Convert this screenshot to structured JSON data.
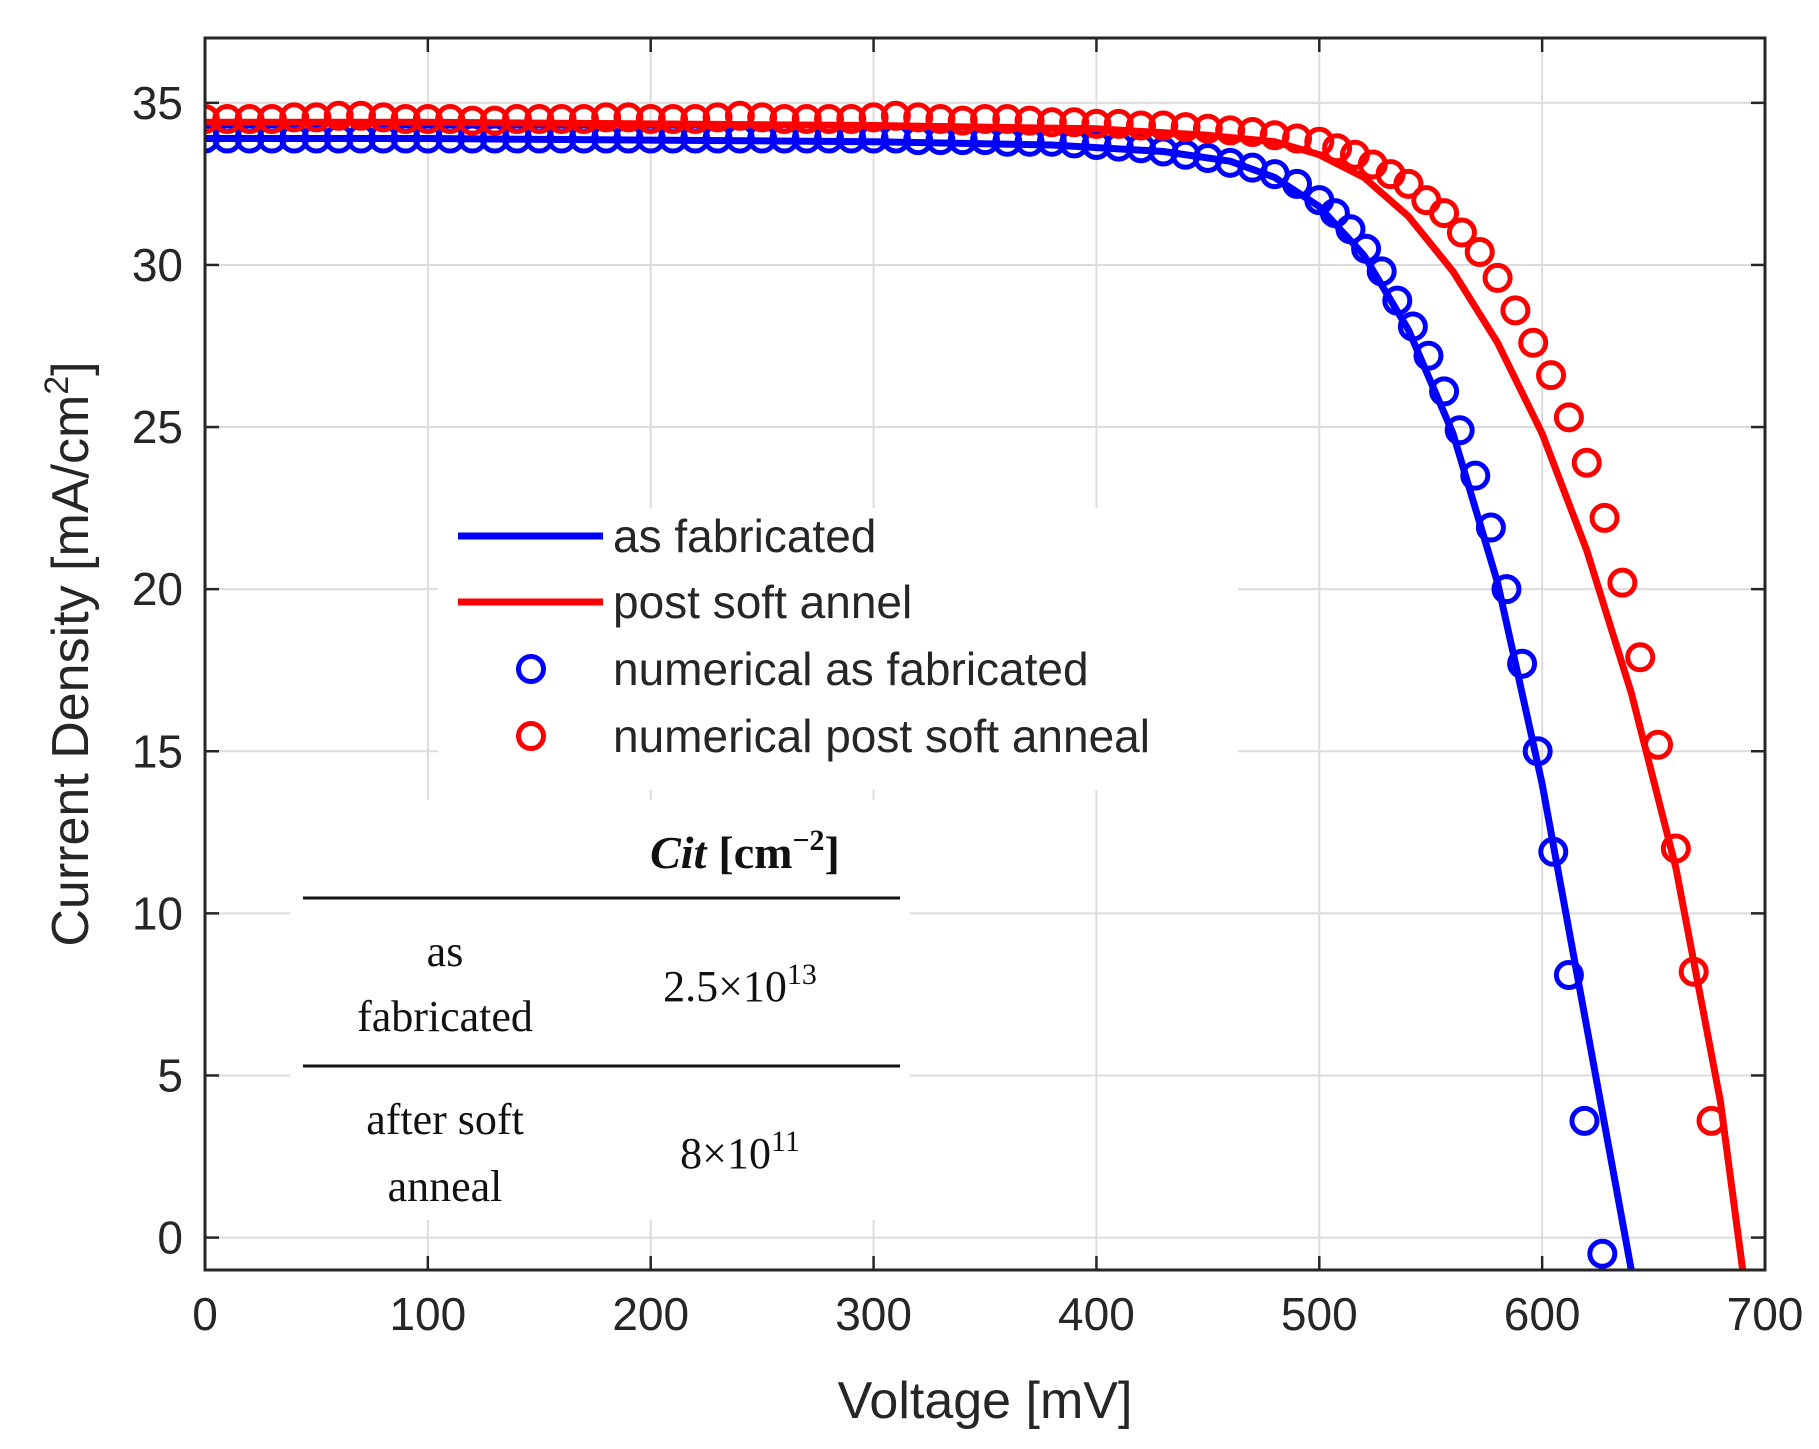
{
  "chart_data": {
    "type": "line",
    "xlabel": "Voltage [mV]",
    "ylabel": "Current Density [mA/cm",
    "ylabel_sup": "2",
    "ylabel_end": "]",
    "xlim": [
      0,
      700
    ],
    "ylim": [
      -1,
      37
    ],
    "xticks": [
      0,
      100,
      200,
      300,
      400,
      500,
      600,
      700
    ],
    "yticks": [
      0,
      5,
      10,
      15,
      20,
      25,
      30,
      35
    ],
    "grid": true,
    "legend": {
      "position": "center-left",
      "entries": [
        {
          "label": "as fabricated",
          "style": "line",
          "color": "#0000ff"
        },
        {
          "label": "post soft annel",
          "style": "line",
          "color": "#ff0000"
        },
        {
          "label": "numerical as fabricated",
          "style": "circle",
          "color": "#0000ff"
        },
        {
          "label": "numerical post soft anneal",
          "style": "circle",
          "color": "#ff0000"
        }
      ]
    },
    "series": [
      {
        "name": "as fabricated",
        "kind": "line",
        "color": "#0000ff",
        "x": [
          0,
          100,
          200,
          300,
          380,
          430,
          460,
          480,
          500,
          520,
          540,
          560,
          580,
          600,
          620,
          640
        ],
        "y": [
          33.9,
          33.9,
          33.85,
          33.8,
          33.7,
          33.5,
          33.2,
          32.7,
          31.8,
          30.3,
          28.0,
          24.8,
          20.2,
          14.0,
          6.5,
          -1.0
        ]
      },
      {
        "name": "post soft annel",
        "kind": "line",
        "color": "#ff0000",
        "x": [
          0,
          100,
          200,
          300,
          400,
          450,
          480,
          500,
          520,
          540,
          560,
          580,
          600,
          620,
          640,
          660,
          680,
          690
        ],
        "y": [
          34.4,
          34.4,
          34.35,
          34.3,
          34.2,
          34.0,
          33.8,
          33.4,
          32.7,
          31.5,
          29.8,
          27.6,
          24.8,
          21.2,
          16.8,
          11.4,
          4.2,
          -1.0
        ]
      },
      {
        "name": "numerical as fabricated",
        "kind": "scatter",
        "color": "#0000ff",
        "x": [
          0,
          10,
          20,
          30,
          40,
          50,
          60,
          70,
          80,
          90,
          100,
          110,
          120,
          130,
          140,
          150,
          160,
          170,
          180,
          190,
          200,
          210,
          220,
          230,
          240,
          250,
          260,
          270,
          280,
          290,
          300,
          310,
          320,
          330,
          340,
          350,
          360,
          370,
          380,
          390,
          400,
          410,
          420,
          430,
          440,
          450,
          460,
          470,
          480,
          490,
          500,
          507,
          514,
          521,
          528,
          535,
          542,
          549,
          556,
          563,
          570,
          577,
          584,
          591,
          598,
          605,
          612,
          619,
          627
        ],
        "y": [
          33.9,
          33.9,
          33.9,
          33.9,
          33.9,
          33.9,
          33.9,
          33.9,
          33.9,
          33.9,
          33.9,
          33.9,
          33.9,
          33.9,
          33.9,
          33.9,
          33.9,
          33.9,
          33.9,
          33.9,
          33.9,
          33.9,
          33.9,
          33.9,
          33.9,
          33.9,
          33.9,
          33.9,
          33.9,
          33.9,
          33.9,
          33.9,
          33.85,
          33.85,
          33.85,
          33.85,
          33.8,
          33.8,
          33.8,
          33.75,
          33.7,
          33.65,
          33.6,
          33.5,
          33.4,
          33.3,
          33.15,
          33.0,
          32.8,
          32.5,
          32.0,
          31.6,
          31.1,
          30.5,
          29.8,
          28.9,
          28.1,
          27.2,
          26.1,
          24.9,
          23.5,
          21.9,
          20.0,
          17.7,
          15.0,
          11.9,
          8.1,
          3.6,
          -0.5
        ]
      },
      {
        "name": "numerical post soft anneal",
        "kind": "scatter",
        "color": "#ff0000",
        "x": [
          0,
          10,
          20,
          30,
          40,
          50,
          60,
          70,
          80,
          90,
          100,
          110,
          120,
          130,
          140,
          150,
          160,
          170,
          180,
          190,
          200,
          210,
          220,
          230,
          240,
          250,
          260,
          270,
          280,
          290,
          300,
          310,
          320,
          330,
          340,
          350,
          360,
          370,
          380,
          390,
          400,
          410,
          420,
          430,
          440,
          450,
          460,
          470,
          480,
          490,
          500,
          508,
          516,
          524,
          532,
          540,
          548,
          556,
          564,
          572,
          580,
          588,
          596,
          604,
          612,
          620,
          628,
          636,
          644,
          652,
          660,
          668,
          676
        ],
        "y": [
          34.5,
          34.5,
          34.5,
          34.5,
          34.55,
          34.55,
          34.6,
          34.6,
          34.55,
          34.5,
          34.5,
          34.5,
          34.45,
          34.45,
          34.5,
          34.5,
          34.5,
          34.5,
          34.55,
          34.55,
          34.5,
          34.5,
          34.5,
          34.55,
          34.6,
          34.55,
          34.5,
          34.5,
          34.5,
          34.5,
          34.55,
          34.6,
          34.55,
          34.5,
          34.45,
          34.5,
          34.5,
          34.45,
          34.4,
          34.4,
          34.35,
          34.35,
          34.3,
          34.3,
          34.25,
          34.2,
          34.15,
          34.1,
          34.0,
          33.9,
          33.8,
          33.6,
          33.4,
          33.1,
          32.8,
          32.5,
          32.0,
          31.6,
          31.0,
          30.4,
          29.6,
          28.6,
          27.6,
          26.6,
          25.3,
          23.9,
          22.2,
          20.2,
          17.9,
          15.2,
          12.0,
          8.2,
          3.6
        ]
      }
    ],
    "inset_table": {
      "header_italic": "Cit",
      "header_unit": "[cm",
      "header_sup": "−2",
      "header_end": "]",
      "rows": [
        {
          "label_line1": "as",
          "label_line2": "fabricated",
          "base": "2.5×10",
          "exp": "13"
        },
        {
          "label_line1": "after soft",
          "label_line2": "anneal",
          "base": "8×10",
          "exp": "11"
        }
      ]
    }
  }
}
